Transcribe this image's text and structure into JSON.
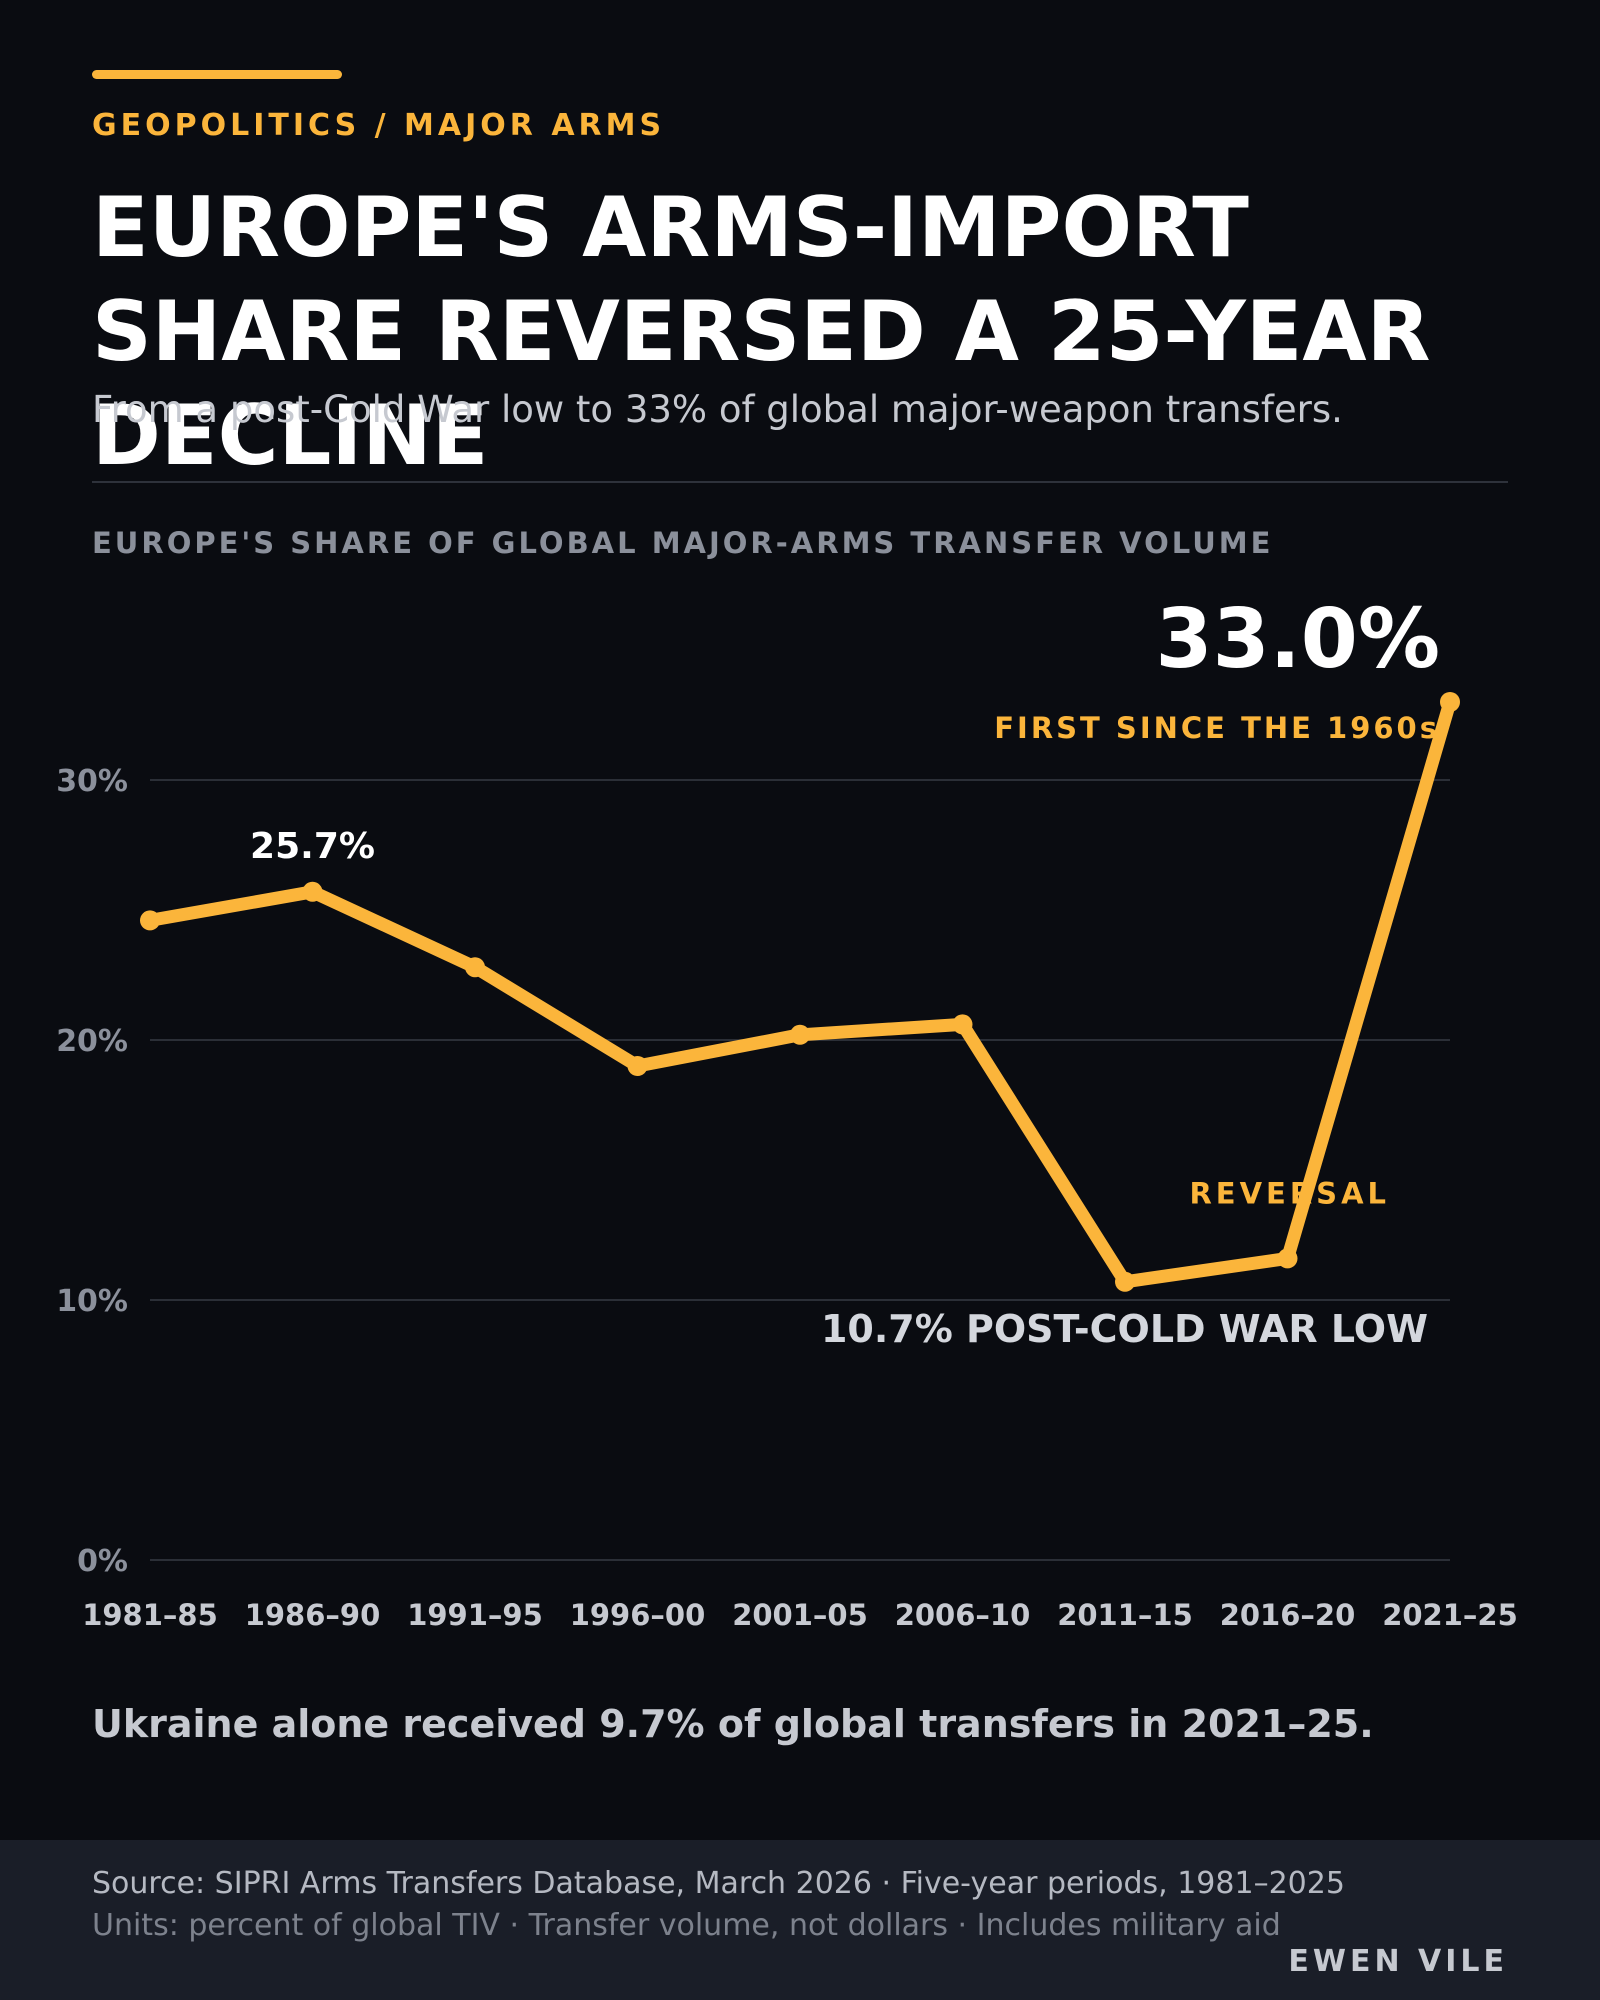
{
  "kicker": "GEOPOLITICS / MAJOR ARMS",
  "title": "EUROPE'S ARMS-IMPORT SHARE REVERSED A 25-YEAR DECLINE",
  "subtitle": "From a post-Cold War low to 33% of global major-weapon transfers.",
  "chart_heading": "EUROPE'S SHARE OF GLOBAL MAJOR-ARMS TRANSFER VOLUME",
  "chart_data": {
    "type": "line",
    "title": "EUROPE'S SHARE OF GLOBAL MAJOR-ARMS TRANSFER VOLUME",
    "categories": [
      "1981–85",
      "1986–90",
      "1991–95",
      "1996–00",
      "2001–05",
      "2006–10",
      "2011–15",
      "2016–20",
      "2021–25"
    ],
    "series": [
      {
        "values": [
          24.6,
          25.7,
          22.8,
          19.0,
          20.2,
          20.6,
          10.7,
          11.6,
          33.0
        ]
      }
    ],
    "ylim": [
      0,
      35
    ],
    "yticks": [
      0,
      10,
      20,
      30
    ],
    "ytick_labels": [
      "0%",
      "10%",
      "20%",
      "30%"
    ],
    "grid": true,
    "line_color": "#fbb53b",
    "annotations": {
      "peak_label": "25.7%",
      "latest_value": "33.0%",
      "latest_note": "FIRST SINCE THE 1960s",
      "reversal": "REVERSAL",
      "low_note": "10.7% POST-COLD WAR LOW"
    }
  },
  "footnote": "Ukraine alone received 9.7% of global transfers in 2021–25.",
  "source": "Source: SIPRI Arms Transfers Database, March 2026 · Five-year periods, 1981–2025",
  "units": "Units: percent of global TIV · Transfer volume, not dollars · Includes military aid",
  "credit": "EWEN VILE",
  "colors": {
    "background": "#0a0c11",
    "accent": "#fbb53b",
    "footer": "#1a1e28"
  }
}
